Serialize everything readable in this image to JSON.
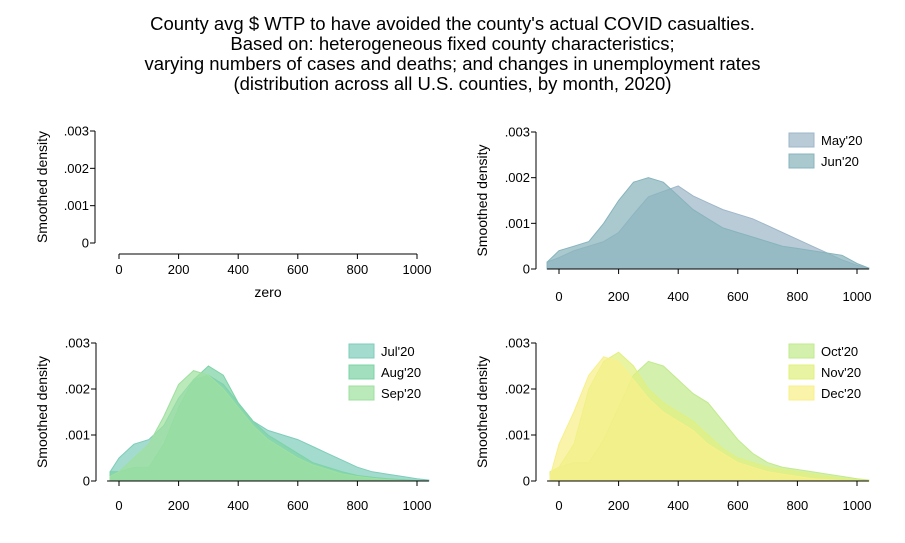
{
  "title_lines": [
    "County avg $ WTP to have avoided the county's actual COVID casualties.",
    "Based on: heterogeneous fixed county characteristics;",
    "varying numbers of cases and deaths; and changes in unemployment rates",
    "(distribution across all U.S. counties, by month, 2020)"
  ],
  "chart_data": [
    {
      "type": "area",
      "panel": "top-left",
      "xlabel": "zero",
      "ylabel": "Smoothed density",
      "xlim": [
        0,
        1000
      ],
      "ylim": [
        0,
        0.003
      ],
      "x_ticks": [
        "0",
        "200",
        "400",
        "600",
        "800",
        "1000"
      ],
      "y_ticks": [
        "0",
        ".001",
        ".002",
        ".003"
      ],
      "legend_position": "none",
      "series": []
    },
    {
      "type": "area",
      "panel": "top-right",
      "xlabel": "",
      "ylabel": "Smoothed density",
      "xlim": [
        -40,
        1040
      ],
      "ylim": [
        0,
        0.003
      ],
      "x_ticks": [
        "0",
        "200",
        "400",
        "600",
        "800",
        "1000"
      ],
      "y_ticks": [
        "0",
        ".001",
        ".002",
        ".003"
      ],
      "legend_position": "top-right",
      "series": [
        {
          "name": "May'20",
          "color": "#9fb7c9",
          "x": [
            -40,
            0,
            50,
            100,
            150,
            200,
            250,
            300,
            350,
            400,
            450,
            500,
            550,
            600,
            650,
            700,
            750,
            800,
            850,
            900,
            950,
            1000,
            1040
          ],
          "y": [
            0.00015,
            0.00025,
            0.0004,
            0.0005,
            0.0006,
            0.0008,
            0.0012,
            0.00158,
            0.0017,
            0.00182,
            0.0016,
            0.00145,
            0.0013,
            0.0012,
            0.0011,
            0.00095,
            0.0008,
            0.00065,
            0.0005,
            0.00035,
            0.0002,
            8e-05,
            2e-05
          ]
        },
        {
          "name": "Jun'20",
          "color": "#88b4bd",
          "x": [
            -40,
            0,
            50,
            100,
            150,
            200,
            250,
            300,
            350,
            400,
            450,
            500,
            550,
            600,
            650,
            700,
            750,
            800,
            850,
            900,
            950,
            1000,
            1040
          ],
          "y": [
            0.00015,
            0.0004,
            0.0005,
            0.0006,
            0.001,
            0.0015,
            0.0019,
            0.002,
            0.0019,
            0.0016,
            0.0013,
            0.0011,
            0.0009,
            0.0008,
            0.0007,
            0.0006,
            0.0005,
            0.00045,
            0.0004,
            0.00035,
            0.0003,
            0.00012,
            2e-05
          ]
        }
      ]
    },
    {
      "type": "area",
      "panel": "bottom-left",
      "xlabel": "",
      "ylabel": "Smoothed density",
      "xlim": [
        -40,
        1040
      ],
      "ylim": [
        0,
        0.003
      ],
      "x_ticks": [
        "0",
        "200",
        "400",
        "600",
        "800",
        "1000"
      ],
      "y_ticks": [
        "0",
        ".001",
        ".002",
        ".003"
      ],
      "legend_position": "top-right",
      "series": [
        {
          "name": "Jul'20",
          "color": "#7fcdbb",
          "x": [
            -30,
            0,
            50,
            100,
            150,
            200,
            250,
            300,
            350,
            400,
            450,
            500,
            550,
            600,
            650,
            700,
            750,
            800,
            850,
            900,
            950,
            1000,
            1040
          ],
          "y": [
            0.0002,
            0.0005,
            0.0008,
            0.0009,
            0.0012,
            0.0018,
            0.0022,
            0.0023,
            0.0021,
            0.0017,
            0.0013,
            0.0011,
            0.001,
            0.0009,
            0.00075,
            0.0006,
            0.00045,
            0.0003,
            0.0002,
            0.00015,
            0.0001,
            5e-05,
            2e-05
          ]
        },
        {
          "name": "Aug'20",
          "color": "#7dd3a6",
          "x": [
            -30,
            0,
            50,
            100,
            150,
            200,
            250,
            300,
            350,
            400,
            450,
            500,
            550,
            600,
            650,
            700,
            750,
            800,
            850,
            900,
            950,
            1000,
            1040
          ],
          "y": [
            0.0002,
            0.0002,
            0.0003,
            0.0003,
            0.0008,
            0.0016,
            0.0022,
            0.0025,
            0.0023,
            0.0017,
            0.0013,
            0.001,
            0.0008,
            0.0006,
            0.0004,
            0.0003,
            0.0002,
            0.00012,
            8e-05,
            5e-05,
            3e-05,
            1e-05,
            0.0
          ]
        },
        {
          "name": "Sep'20",
          "color": "#9fe0a0",
          "x": [
            -30,
            0,
            50,
            100,
            150,
            200,
            250,
            300,
            350,
            400,
            450,
            500,
            550,
            600,
            650,
            700,
            750,
            800,
            850,
            900,
            950,
            1000,
            1040
          ],
          "y": [
            0.0001,
            0.0002,
            0.0005,
            0.0008,
            0.0014,
            0.0021,
            0.0024,
            0.0023,
            0.002,
            0.0016,
            0.0012,
            0.0009,
            0.0007,
            0.0005,
            0.00035,
            0.00025,
            0.00015,
            0.0001,
            6e-05,
            3e-05,
            1e-05,
            0.0,
            0.0
          ]
        }
      ]
    },
    {
      "type": "area",
      "panel": "bottom-right",
      "xlabel": "",
      "ylabel": "Smoothed density",
      "xlim": [
        -40,
        1040
      ],
      "ylim": [
        0,
        0.003
      ],
      "x_ticks": [
        "0",
        "200",
        "400",
        "600",
        "800",
        "1000"
      ],
      "y_ticks": [
        "0",
        ".001",
        ".002",
        ".003"
      ],
      "legend_position": "top-right",
      "series": [
        {
          "name": "Oct'20",
          "color": "#c2ea8e",
          "x": [
            -30,
            0,
            50,
            100,
            150,
            200,
            250,
            300,
            350,
            400,
            450,
            500,
            550,
            600,
            650,
            700,
            750,
            800,
            850,
            900,
            950,
            1000,
            1040
          ],
          "y": [
            0.0002,
            0.0003,
            0.0004,
            0.0004,
            0.0009,
            0.0016,
            0.0023,
            0.0026,
            0.0025,
            0.0022,
            0.0019,
            0.0017,
            0.0013,
            0.0009,
            0.0006,
            0.0004,
            0.0003,
            0.00025,
            0.0002,
            0.00015,
            0.0001,
            5e-05,
            2e-05
          ]
        },
        {
          "name": "Nov'20",
          "color": "#e1f07e",
          "x": [
            -30,
            0,
            50,
            100,
            150,
            200,
            250,
            300,
            350,
            400,
            450,
            500,
            550,
            600,
            650,
            700,
            750,
            800,
            850,
            900,
            950,
            1000,
            1040
          ],
          "y": [
            0.0002,
            0.0003,
            0.0008,
            0.002,
            0.0026,
            0.0028,
            0.0025,
            0.002,
            0.0017,
            0.0015,
            0.0013,
            0.001,
            0.0007,
            0.0005,
            0.0004,
            0.0003,
            0.00025,
            0.0002,
            0.00015,
            0.0001,
            6e-05,
            3e-05,
            1e-05
          ]
        },
        {
          "name": "Dec'20",
          "color": "#f8f08a",
          "x": [
            -30,
            0,
            50,
            100,
            150,
            200,
            250,
            300,
            350,
            400,
            450,
            500,
            550,
            600,
            650,
            700,
            750,
            800,
            850,
            900,
            950,
            1000,
            1040
          ],
          "y": [
            0.0001,
            0.0008,
            0.0015,
            0.0023,
            0.0027,
            0.0026,
            0.0022,
            0.0018,
            0.0015,
            0.0013,
            0.0011,
            0.0008,
            0.0006,
            0.0004,
            0.0003,
            0.0002,
            0.00015,
            0.0001,
            5e-05,
            3e-05,
            1e-05,
            0.0,
            0.0
          ]
        }
      ]
    }
  ]
}
